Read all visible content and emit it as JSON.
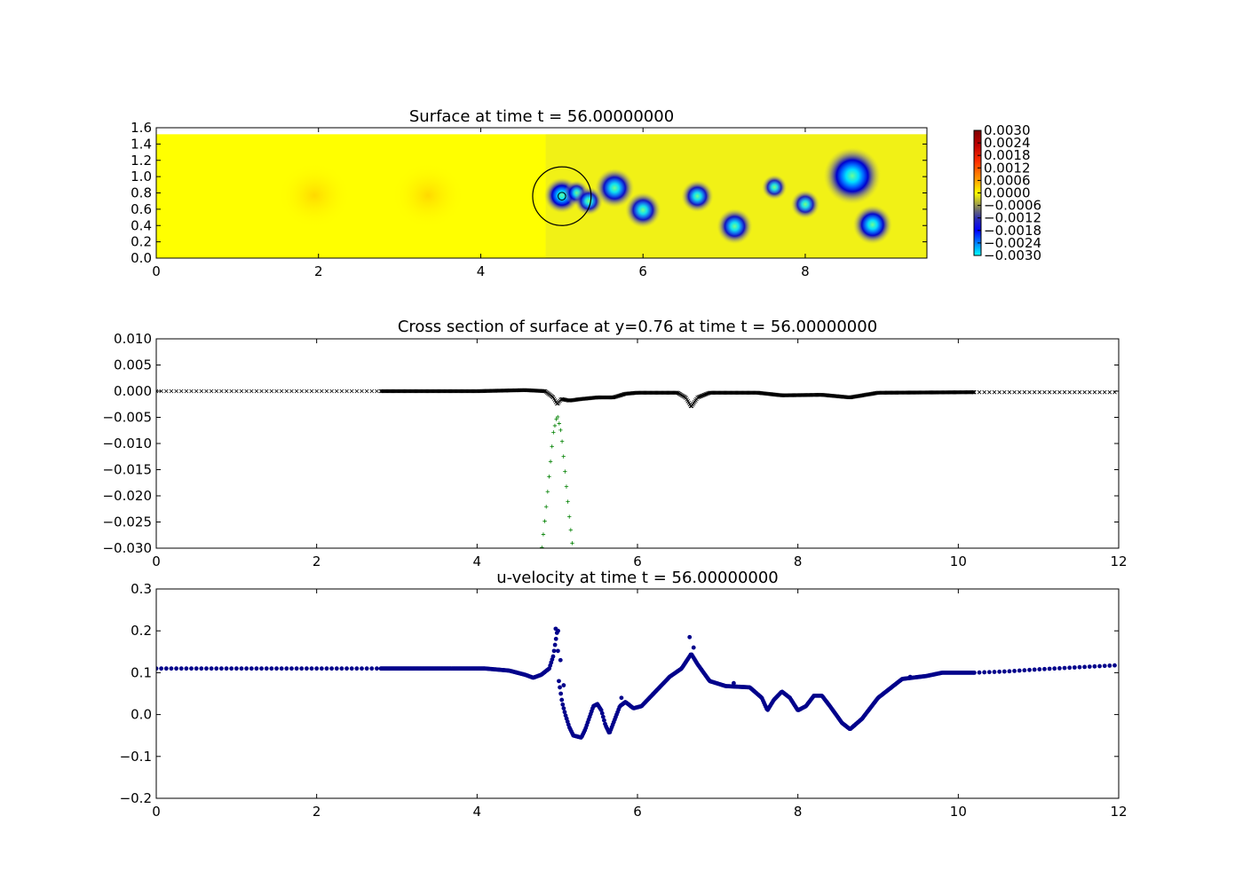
{
  "chart_data": [
    {
      "type": "heatmap",
      "title": "Surface at time t =    56.00000000",
      "xlim": [
        0,
        9.5
      ],
      "ylim": [
        0,
        1.6
      ],
      "xticks": [
        "0",
        "2",
        "4",
        "6",
        "8"
      ],
      "yticks": [
        "0.0",
        "0.2",
        "0.4",
        "0.6",
        "0.8",
        "1.0",
        "1.2",
        "1.4",
        "1.6"
      ],
      "domain_y": [
        0,
        1.52
      ],
      "colorbar": {
        "min": -0.003,
        "max": 0.003,
        "ticks": [
          "0.0030",
          "0.0024",
          "0.0018",
          "0.0012",
          "0.0006",
          "0.0000",
          "−0.0006",
          "−0.0012",
          "−0.0018",
          "−0.0024",
          "−0.0030"
        ]
      },
      "circle": {
        "cx": 5.0,
        "cy": 0.76,
        "r": 0.36
      },
      "depressions": [
        {
          "x": 5.0,
          "y": 0.77,
          "r": 0.1,
          "depth": -0.003
        },
        {
          "x": 5.18,
          "y": 0.8,
          "r": 0.07,
          "depth": -0.002
        },
        {
          "x": 5.33,
          "y": 0.7,
          "r": 0.08,
          "depth": -0.0022
        },
        {
          "x": 5.65,
          "y": 0.86,
          "r": 0.11,
          "depth": -0.0026
        },
        {
          "x": 6.0,
          "y": 0.59,
          "r": 0.1,
          "depth": -0.0024
        },
        {
          "x": 6.67,
          "y": 0.76,
          "r": 0.09,
          "depth": -0.0024
        },
        {
          "x": 7.13,
          "y": 0.39,
          "r": 0.1,
          "depth": -0.0025
        },
        {
          "x": 7.62,
          "y": 0.87,
          "r": 0.07,
          "depth": -0.002
        },
        {
          "x": 8.0,
          "y": 0.66,
          "r": 0.08,
          "depth": -0.0021
        },
        {
          "x": 8.58,
          "y": 1.01,
          "r": 0.16,
          "depth": -0.003
        },
        {
          "x": 8.83,
          "y": 0.41,
          "r": 0.11,
          "depth": -0.0028
        }
      ],
      "bumps": [
        {
          "x": 1.95,
          "y": 0.77,
          "r": 0.45,
          "value": 0.0003
        },
        {
          "x": 3.35,
          "y": 0.77,
          "r": 0.45,
          "value": 0.0003
        }
      ]
    },
    {
      "type": "scatter",
      "title": "Cross section of surface at y=0.76 at time t =    56.00000000",
      "xlim": [
        0,
        12
      ],
      "ylim": [
        -0.03,
        0.01
      ],
      "xticks": [
        "0",
        "2",
        "4",
        "6",
        "8",
        "10",
        "12"
      ],
      "yticks": [
        "−0.030",
        "−0.025",
        "−0.020",
        "−0.015",
        "−0.010",
        "−0.005",
        "0.000",
        "0.005",
        "0.010"
      ],
      "series": [
        {
          "marker": "x",
          "color": "#000000",
          "coarse_points": [
            [
              0,
              0
            ],
            [
              0.5,
              0
            ],
            [
              1,
              0
            ],
            [
              1.5,
              0
            ],
            [
              2,
              0
            ],
            [
              2.5,
              0
            ],
            [
              2.8,
              0
            ],
            [
              10.2,
              -0.0002
            ],
            [
              10.6,
              -0.0002
            ],
            [
              11,
              -0.0002
            ],
            [
              11.5,
              -0.0002
            ],
            [
              12,
              -0.0002
            ]
          ],
          "profile": [
            [
              2.8,
              0
            ],
            [
              4.0,
              0
            ],
            [
              4.6,
              0.0002
            ],
            [
              4.85,
              0.0
            ],
            [
              4.95,
              -0.0012
            ],
            [
              5.0,
              -0.0025
            ],
            [
              5.05,
              -0.0015
            ],
            [
              5.15,
              -0.0018
            ],
            [
              5.3,
              -0.0015
            ],
            [
              5.5,
              -0.0012
            ],
            [
              5.7,
              -0.0012
            ],
            [
              5.85,
              -0.0005
            ],
            [
              6.0,
              -0.0003
            ],
            [
              6.5,
              -0.0003
            ],
            [
              6.6,
              -0.0012
            ],
            [
              6.67,
              -0.003
            ],
            [
              6.75,
              -0.0012
            ],
            [
              6.9,
              -0.0003
            ],
            [
              7.5,
              -0.0003
            ],
            [
              7.8,
              -0.0008
            ],
            [
              8.3,
              -0.0007
            ],
            [
              8.65,
              -0.0012
            ],
            [
              9.0,
              -0.0003
            ],
            [
              10.2,
              -0.0002
            ]
          ]
        },
        {
          "marker": "+",
          "color": "#008000",
          "profile": [
            [
              4.7,
              -0.045
            ],
            [
              4.85,
              -0.024
            ],
            [
              4.95,
              -0.008
            ],
            [
              5.0,
              -0.0045
            ],
            [
              5.05,
              -0.008
            ],
            [
              5.15,
              -0.024
            ],
            [
              5.3,
              -0.045
            ]
          ]
        }
      ]
    },
    {
      "type": "scatter",
      "title": "u-velocity at time t =    56.00000000",
      "xlim": [
        0,
        12
      ],
      "ylim": [
        -0.2,
        0.3
      ],
      "xticks": [
        "0",
        "2",
        "4",
        "6",
        "8",
        "10",
        "12"
      ],
      "yticks": [
        "−0.2",
        "−0.1",
        "0.0",
        "0.1",
        "0.2",
        "0.3"
      ],
      "series": [
        {
          "marker": "o",
          "color": "#00008b",
          "coarse_points": [
            [
              0,
              0.11
            ],
            [
              0.5,
              0.11
            ],
            [
              1,
              0.11
            ],
            [
              1.5,
              0.11
            ],
            [
              2,
              0.11
            ],
            [
              2.5,
              0.11
            ],
            [
              2.8,
              0.11
            ],
            [
              10.2,
              0.1
            ],
            [
              10.6,
              0.103
            ],
            [
              11,
              0.108
            ],
            [
              11.5,
              0.113
            ],
            [
              12,
              0.118
            ]
          ],
          "profile": [
            [
              2.8,
              0.11
            ],
            [
              4.1,
              0.11
            ],
            [
              4.4,
              0.105
            ],
            [
              4.6,
              0.095
            ],
            [
              4.7,
              0.088
            ],
            [
              4.8,
              0.095
            ],
            [
              4.9,
              0.11
            ],
            [
              4.95,
              0.14
            ],
            [
              5.0,
              0.2
            ],
            [
              5.02,
              0.08
            ],
            [
              5.06,
              0.03
            ],
            [
              5.1,
              0.0
            ],
            [
              5.15,
              -0.03
            ],
            [
              5.2,
              -0.05
            ],
            [
              5.3,
              -0.055
            ],
            [
              5.35,
              -0.035
            ],
            [
              5.45,
              0.02
            ],
            [
              5.5,
              0.025
            ],
            [
              5.55,
              0.01
            ],
            [
              5.6,
              -0.025
            ],
            [
              5.65,
              -0.045
            ],
            [
              5.7,
              -0.02
            ],
            [
              5.78,
              0.02
            ],
            [
              5.85,
              0.03
            ],
            [
              5.95,
              0.015
            ],
            [
              6.05,
              0.02
            ],
            [
              6.2,
              0.05
            ],
            [
              6.4,
              0.09
            ],
            [
              6.55,
              0.11
            ],
            [
              6.67,
              0.145
            ],
            [
              6.75,
              0.12
            ],
            [
              6.9,
              0.08
            ],
            [
              7.1,
              0.068
            ],
            [
              7.4,
              0.065
            ],
            [
              7.55,
              0.04
            ],
            [
              7.62,
              0.01
            ],
            [
              7.7,
              0.035
            ],
            [
              7.8,
              0.055
            ],
            [
              7.9,
              0.04
            ],
            [
              8.0,
              0.01
            ],
            [
              8.1,
              0.02
            ],
            [
              8.2,
              0.045
            ],
            [
              8.3,
              0.045
            ],
            [
              8.4,
              0.02
            ],
            [
              8.55,
              -0.02
            ],
            [
              8.65,
              -0.035
            ],
            [
              8.8,
              -0.01
            ],
            [
              9.0,
              0.04
            ],
            [
              9.3,
              0.085
            ],
            [
              9.6,
              0.092
            ],
            [
              9.8,
              0.1
            ],
            [
              10.2,
              0.1
            ]
          ],
          "outliers": [
            [
              4.98,
              0.205
            ],
            [
              5.01,
              0.2
            ],
            [
              5.04,
              0.13
            ],
            [
              5.08,
              0.07
            ],
            [
              6.65,
              0.185
            ],
            [
              6.7,
              0.16
            ],
            [
              5.8,
              0.04
            ],
            [
              7.2,
              0.075
            ],
            [
              9.4,
              0.09
            ]
          ]
        }
      ]
    }
  ]
}
